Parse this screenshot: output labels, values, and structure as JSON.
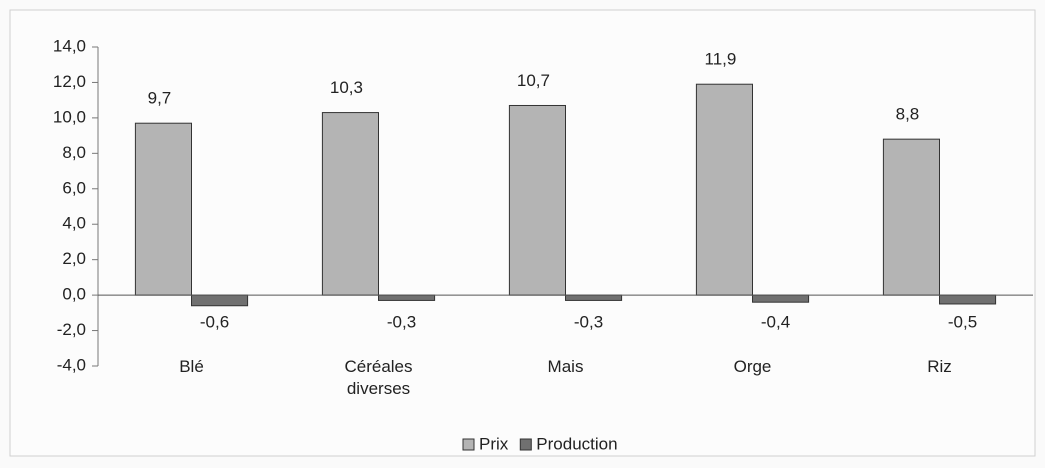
{
  "chart_data": {
    "type": "bar",
    "categories": [
      "Blé",
      "Céréales diverses",
      "Mais",
      "Orge",
      "Riz"
    ],
    "series": [
      {
        "name": "Prix",
        "color": "#b4b4b4",
        "values": [
          9.7,
          10.3,
          10.7,
          11.9,
          8.8
        ],
        "value_labels": [
          "9,7",
          "10,3",
          "10,7",
          "11,9",
          "8,8"
        ]
      },
      {
        "name": "Production",
        "color": "#707070",
        "values": [
          -0.6,
          -0.3,
          -0.3,
          -0.4,
          -0.5
        ],
        "value_labels": [
          "-0,6",
          "-0,3",
          "-0,3",
          "-0,4",
          "-0,5"
        ]
      }
    ],
    "ylim": [
      -4,
      14
    ],
    "yticks": [
      {
        "value": -4,
        "label": "-4,0"
      },
      {
        "value": -2,
        "label": "-2,0"
      },
      {
        "value": 0,
        "label": "0,0"
      },
      {
        "value": 2,
        "label": "2,0"
      },
      {
        "value": 4,
        "label": "4,0"
      },
      {
        "value": 6,
        "label": "6,0"
      },
      {
        "value": 8,
        "label": "8,0"
      },
      {
        "value": 10,
        "label": "10,0"
      },
      {
        "value": 12,
        "label": "12,0"
      },
      {
        "value": 14,
        "label": "14,0"
      }
    ],
    "grid": false,
    "legend": "bottom"
  }
}
